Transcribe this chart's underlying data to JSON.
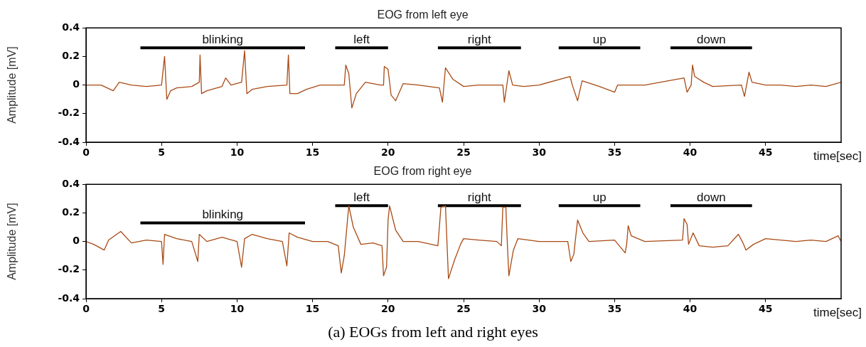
{
  "chart_data": [
    {
      "type": "line",
      "title": "EOG from left eye",
      "xlabel": "time[sec]",
      "ylabel": "Amplitude [mV]",
      "xlim": [
        0,
        50
      ],
      "xticks": [
        0,
        5,
        10,
        15,
        20,
        25,
        30,
        35,
        40,
        45
      ],
      "ylim": [
        -0.4,
        0.4
      ],
      "yticks": [
        -0.4,
        -0.2,
        0,
        0.2,
        0.4
      ],
      "grid": false,
      "legend": false,
      "marker": "none",
      "line_style": "solid",
      "series": [
        {
          "color": "#a84a14",
          "x": [
            0,
            1,
            1.8,
            2.2,
            3,
            4,
            5,
            5.2,
            5.35,
            5.6,
            6,
            7,
            7.5,
            7.55,
            7.65,
            8,
            9,
            9.25,
            9.6,
            10.3,
            10.5,
            10.65,
            11,
            12,
            13.3,
            13.4,
            13.5,
            14,
            14.6,
            15.5,
            16.4,
            17.1,
            17.2,
            17.4,
            17.6,
            17.9,
            18.5,
            19.5,
            19.7,
            19.75,
            20,
            20.2,
            20.5,
            21,
            22,
            23.4,
            23.6,
            23.8,
            24.3,
            25,
            26,
            27.6,
            27.7,
            28,
            28.25,
            29,
            30,
            32.05,
            32.2,
            32.55,
            32.85,
            34,
            35,
            35.2,
            37,
            39.6,
            39.8,
            40.07,
            40.16,
            40.3,
            40.9,
            41.5,
            43.4,
            43.6,
            43.9,
            44.1,
            45,
            46,
            47,
            48,
            49,
            50
          ],
          "values": [
            0,
            0,
            -0.04,
            0.02,
            0,
            -0.01,
            0,
            0.2,
            -0.1,
            -0.04,
            -0.02,
            -0.01,
            0.02,
            0.21,
            -0.06,
            -0.04,
            -0.01,
            0.05,
            0,
            0.02,
            0.24,
            -0.06,
            -0.03,
            -0.01,
            0,
            0.21,
            -0.06,
            -0.06,
            -0.03,
            0,
            0,
            0,
            0.14,
            0.08,
            -0.16,
            -0.06,
            0.02,
            0,
            0,
            0.13,
            0.11,
            -0.07,
            -0.11,
            0.01,
            0,
            -0.02,
            -0.12,
            0.12,
            0.04,
            -0.01,
            0,
            0,
            -0.12,
            0.1,
            0,
            -0.01,
            0,
            0.06,
            0,
            -0.11,
            0.03,
            -0.01,
            -0.05,
            0,
            0,
            0.05,
            -0.05,
            0,
            0.14,
            0.06,
            0.02,
            -0.01,
            0,
            -0.08,
            0.09,
            0.02,
            0,
            0,
            -0.01,
            0,
            -0.01,
            0.02
          ]
        },
        {
          "name": "blinking",
          "color": "#000000",
          "x": [
            3.6,
            14.5
          ],
          "values": [
            0.26,
            0.26
          ]
        },
        {
          "name": "left",
          "color": "#000000",
          "x": [
            16.5,
            20
          ],
          "values": [
            0.26,
            0.26
          ]
        },
        {
          "name": "right",
          "color": "#000000",
          "x": [
            23.3,
            28.8
          ],
          "values": [
            0.26,
            0.26
          ]
        },
        {
          "name": "up",
          "color": "#000000",
          "x": [
            31.3,
            36.7
          ],
          "values": [
            0.26,
            0.26
          ]
        },
        {
          "name": "down",
          "color": "#000000",
          "x": [
            38.7,
            44.1
          ],
          "values": [
            0.26,
            0.26
          ]
        }
      ]
    },
    {
      "type": "line",
      "title": "EOG from right eye",
      "xlabel": "time[sec]",
      "ylabel": "Amplitude [mV]",
      "xlim": [
        0,
        50
      ],
      "xticks": [
        0,
        5,
        10,
        15,
        20,
        25,
        30,
        35,
        40,
        45
      ],
      "ylim": [
        -0.4,
        0.4
      ],
      "yticks": [
        -0.4,
        -0.2,
        0,
        0.2,
        0.4
      ],
      "grid": false,
      "legend": false,
      "marker": "none",
      "line_style": "solid",
      "annotations": [
        "(a) EOGs from left and right eyes"
      ],
      "series": [
        {
          "color": "#a84a14",
          "x": [
            0,
            0.5,
            1.2,
            1.5,
            2.3,
            3,
            4,
            5,
            5.1,
            5.2,
            6,
            7,
            7.4,
            7.5,
            8,
            9,
            10,
            10.3,
            10.5,
            11,
            12,
            13,
            13.3,
            13.45,
            14,
            15,
            16,
            16.7,
            16.9,
            17.1,
            17.4,
            17.7,
            18.2,
            19,
            19.6,
            19.7,
            19.9,
            20,
            20.1,
            20.5,
            21,
            22,
            23.3,
            23.5,
            23.8,
            24,
            24.4,
            24.8,
            25,
            26,
            27.2,
            27.5,
            27.6,
            27.8,
            27.9,
            28,
            28.3,
            28.6,
            30,
            31.9,
            32.1,
            32.3,
            32.55,
            32.9,
            33.3,
            35,
            35.7,
            35.8,
            35.9,
            36.1,
            37,
            39.5,
            39.6,
            39.8,
            39.9,
            40.2,
            40.6,
            41.5,
            42.5,
            43.2,
            43.5,
            43.7,
            44.2,
            45,
            46,
            47,
            48,
            49,
            49.8,
            50
          ],
          "values": [
            0,
            -0.02,
            -0.06,
            0.01,
            0.07,
            -0.01,
            0.01,
            0,
            -0.16,
            0.05,
            0.02,
            0,
            -0.14,
            0.05,
            0,
            0.03,
            0,
            -0.18,
            0.02,
            0.05,
            0.02,
            0,
            -0.17,
            0.06,
            0.03,
            0,
            0,
            -0.03,
            -0.22,
            -0.1,
            0.25,
            0.1,
            -0.02,
            -0.01,
            -0.03,
            -0.24,
            -0.18,
            0.15,
            0.25,
            0.08,
            0,
            0,
            -0.03,
            0.24,
            0.25,
            -0.26,
            -0.13,
            -0.02,
            0.02,
            0.01,
            0,
            -0.03,
            0.24,
            0.24,
            -0.02,
            -0.24,
            -0.06,
            0.02,
            0,
            0,
            -0.14,
            -0.09,
            0.15,
            0.06,
            0,
            0.01,
            -0.08,
            -0.02,
            0.11,
            0.04,
            0,
            0.01,
            0.16,
            0.12,
            -0.02,
            0.06,
            -0.03,
            -0.04,
            -0.03,
            0.05,
            -0.01,
            -0.06,
            -0.02,
            0.02,
            0.01,
            0,
            0.01,
            0,
            0.04,
            0
          ]
        },
        {
          "name": "blinking",
          "color": "#000000",
          "x": [
            3.6,
            14.5
          ],
          "values": [
            0.13,
            0.13
          ]
        },
        {
          "name": "left",
          "color": "#000000",
          "x": [
            16.5,
            20
          ],
          "values": [
            0.25,
            0.25
          ]
        },
        {
          "name": "right",
          "color": "#000000",
          "x": [
            23.3,
            28.8
          ],
          "values": [
            0.25,
            0.25
          ]
        },
        {
          "name": "up",
          "color": "#000000",
          "x": [
            31.3,
            36.7
          ],
          "values": [
            0.25,
            0.25
          ]
        },
        {
          "name": "down",
          "color": "#000000",
          "x": [
            38.7,
            44.1
          ],
          "values": [
            0.25,
            0.25
          ]
        }
      ]
    }
  ]
}
